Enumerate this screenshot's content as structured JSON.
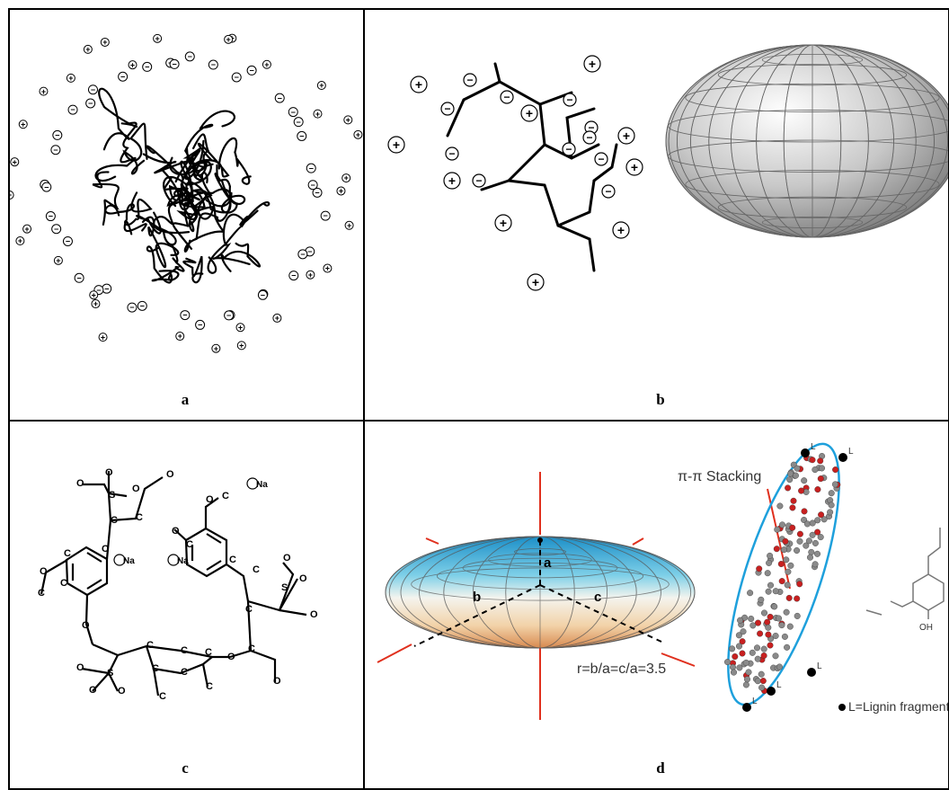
{
  "panels": {
    "a": {
      "caption": "a"
    },
    "b": {
      "caption": "b"
    },
    "c": {
      "caption": "c",
      "atoms": {
        "oxygen": "O",
        "carbon": "C",
        "sulfur": "S",
        "sodium": "Na"
      }
    },
    "d": {
      "caption": "d",
      "axis_labels": [
        "a",
        "b",
        "c"
      ],
      "ratio_text": "r=b/a=c/a=3.5",
      "stacking_label": "π-π Stacking",
      "legend_text": "L=Lignin fragment",
      "marker_label": "L",
      "oh_label": "OH"
    }
  },
  "symbols": {
    "positive": "+",
    "negative": "−"
  },
  "colors": {
    "border": "#000000",
    "ellipse_outline": "#1ea0dc",
    "arrow": "#e0301e"
  }
}
